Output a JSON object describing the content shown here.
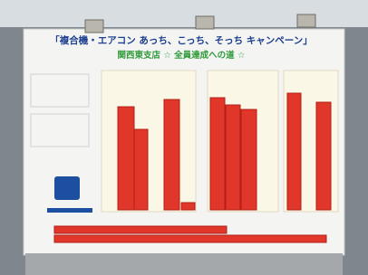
{
  "header": {
    "title": "「複合機・エアコン あっち、こっち、そっち キャンペーン」",
    "subtitle": "関西東支店 ☆ 全員達成への道 ☆"
  }
}
